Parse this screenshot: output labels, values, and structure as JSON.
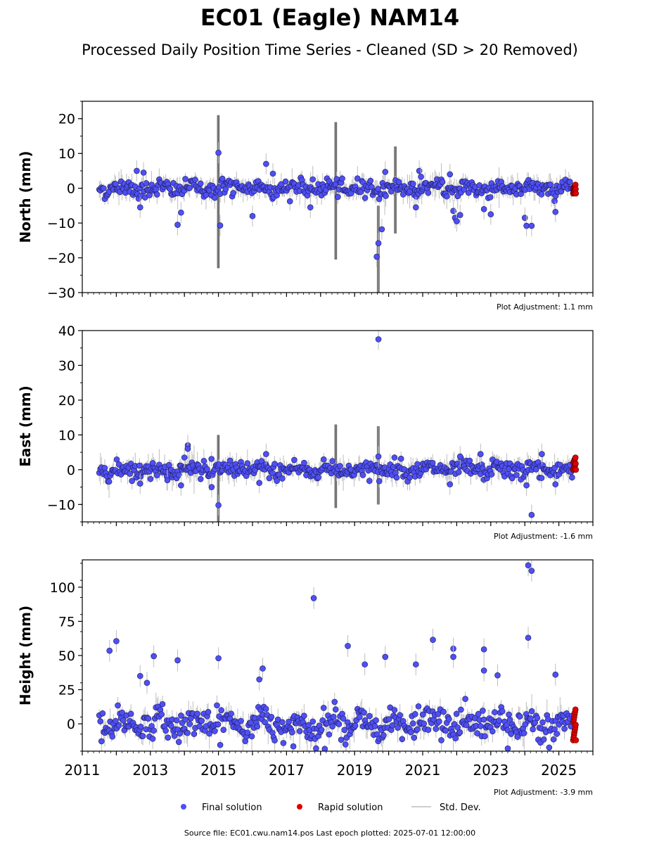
{
  "title": "EC01 (Eagle) NAM14",
  "subtitle": "Processed Daily Position Time Series - Cleaned (SD > 20 Removed)",
  "source_note": "Source file: EC01.cwu.nam14.pos  Last epoch plotted: 2025-07-01 12:00:00",
  "legend": {
    "final": "Final solution",
    "rapid": "Rapid solution",
    "stddev": "Std. Dev."
  },
  "colors": {
    "final": "#4f4ff5",
    "rapid": "#e00000",
    "stddev": "#bdbdbd"
  },
  "chart_data": [
    {
      "type": "scatter",
      "panel": "north",
      "ylabel": "North (mm)",
      "adjustment_label": "Plot Adjustment: 1.1 mm",
      "xlim": [
        2011,
        2026
      ],
      "ylim": [
        -30,
        25
      ],
      "yticks": [
        -30,
        -20,
        -10,
        0,
        10,
        20
      ],
      "ytick_labels": [
        "−30",
        "−20",
        "−10",
        "0",
        "10",
        "20"
      ],
      "noise": {
        "amp": 1.2,
        "sd": 1.5
      },
      "outliers": [
        [
          2015.0,
          10.2
        ],
        [
          2016.4,
          7.0
        ],
        [
          2016.6,
          4.2
        ],
        [
          2013.8,
          -10.5
        ],
        [
          2015.05,
          -10.7
        ],
        [
          2019.7,
          -15.8
        ],
        [
          2019.65,
          -19.7
        ],
        [
          2019.8,
          -11.8
        ],
        [
          2019.9,
          4.7
        ],
        [
          2020.9,
          5.0
        ],
        [
          2020.95,
          3.3
        ],
        [
          2021.8,
          4.0
        ],
        [
          2021.9,
          -6.5
        ],
        [
          2021.95,
          -8.5
        ],
        [
          2022.1,
          -7.7
        ],
        [
          2022.0,
          -9.5
        ],
        [
          2022.8,
          -6.0
        ],
        [
          2023.0,
          -7.5
        ],
        [
          2024.0,
          -8.5
        ],
        [
          2024.05,
          -10.8
        ],
        [
          2024.2,
          -10.8
        ],
        [
          2024.9,
          -6.8
        ],
        [
          2012.6,
          5.0
        ],
        [
          2012.7,
          -5.5
        ],
        [
          2013.9,
          -7.0
        ],
        [
          2012.8,
          4.5
        ],
        [
          2016.0,
          -8.0
        ],
        [
          2017.7,
          -5.5
        ],
        [
          2020.8,
          -5.5
        ]
      ],
      "rapid": {
        "x": [
          2025.42,
          2025.5
        ],
        "y": [
          -1.5,
          1.0
        ]
      },
      "spikes": [
        [
          2015.0,
          -23,
          21
        ],
        [
          2018.45,
          -20.5,
          19
        ],
        [
          2019.7,
          -30,
          -5
        ],
        [
          2020.2,
          -13,
          12
        ]
      ]
    },
    {
      "type": "scatter",
      "panel": "east",
      "ylabel": "East (mm)",
      "adjustment_label": "Plot Adjustment: -1.6 mm",
      "xlim": [
        2011,
        2026
      ],
      "ylim": [
        -15,
        40
      ],
      "yticks": [
        -10,
        0,
        10,
        20,
        30,
        40
      ],
      "ytick_labels": [
        "−10",
        "0",
        "10",
        "20",
        "30",
        "40"
      ],
      "noise": {
        "amp": 1.2,
        "sd": 1.5
      },
      "outliers": [
        [
          2019.7,
          37.5
        ],
        [
          2014.1,
          7.0
        ],
        [
          2014.1,
          6.0
        ],
        [
          2015.0,
          -10.2
        ],
        [
          2014.8,
          -5.0
        ],
        [
          2014.0,
          3.5
        ],
        [
          2016.4,
          4.5
        ],
        [
          2019.7,
          3.8
        ],
        [
          2022.7,
          4.5
        ],
        [
          2024.2,
          -13.0
        ],
        [
          2024.05,
          -4.5
        ],
        [
          2024.9,
          -4.2
        ],
        [
          2024.5,
          4.5
        ],
        [
          2012.7,
          -4.0
        ],
        [
          2013.9,
          -4.5
        ],
        [
          2021.8,
          -4.2
        ],
        [
          2022.1,
          3.8
        ],
        [
          2016.2,
          -3.8
        ],
        [
          2013.5,
          -3.0
        ]
      ],
      "rapid": {
        "x": [
          2025.42,
          2025.5
        ],
        "y": [
          0.0,
          3.5
        ]
      },
      "spikes": [
        [
          2015.0,
          -15,
          10
        ],
        [
          2018.45,
          -11,
          13
        ],
        [
          2019.7,
          -10,
          12.5
        ]
      ]
    },
    {
      "type": "scatter",
      "panel": "height",
      "ylabel": "Height (mm)",
      "adjustment_label": "Plot Adjustment: -3.9 mm",
      "xlim": [
        2011,
        2026
      ],
      "ylim": [
        -20,
        120
      ],
      "yticks": [
        0,
        25,
        50,
        75,
        100
      ],
      "ytick_labels": [
        "0",
        "25",
        "50",
        "75",
        "100"
      ],
      "xticks": [
        2011,
        2013,
        2015,
        2017,
        2019,
        2021,
        2023,
        2025
      ],
      "xtick_labels": [
        "2011",
        "2013",
        "2015",
        "2017",
        "2019",
        "2021",
        "2023",
        "2025"
      ],
      "noise": {
        "amp": 5.5,
        "sd": 4.0
      },
      "outliers": [
        [
          2011.8,
          53.5
        ],
        [
          2012.0,
          60.5
        ],
        [
          2013.1,
          49.5
        ],
        [
          2013.8,
          46.5
        ],
        [
          2015.0,
          48.0
        ],
        [
          2017.8,
          92.0
        ],
        [
          2018.8,
          57.0
        ],
        [
          2019.3,
          43.5
        ],
        [
          2019.9,
          49.0
        ],
        [
          2020.8,
          43.5
        ],
        [
          2021.3,
          61.5
        ],
        [
          2021.9,
          55.0
        ],
        [
          2021.9,
          49.0
        ],
        [
          2022.8,
          54.5
        ],
        [
          2022.8,
          39.0
        ],
        [
          2023.2,
          35.5
        ],
        [
          2024.1,
          116.0
        ],
        [
          2024.2,
          112.0
        ],
        [
          2024.1,
          63.0
        ],
        [
          2024.9,
          36.0
        ],
        [
          2012.7,
          35.0
        ],
        [
          2012.9,
          30.0
        ],
        [
          2016.3,
          40.5
        ],
        [
          2016.2,
          32.5
        ],
        [
          2017.2,
          -16.5
        ],
        [
          2023.5,
          -18.0
        ]
      ],
      "rapid": {
        "x": [
          2025.42,
          2025.5
        ],
        "y": [
          -12,
          10.5
        ]
      },
      "spikes": []
    }
  ]
}
